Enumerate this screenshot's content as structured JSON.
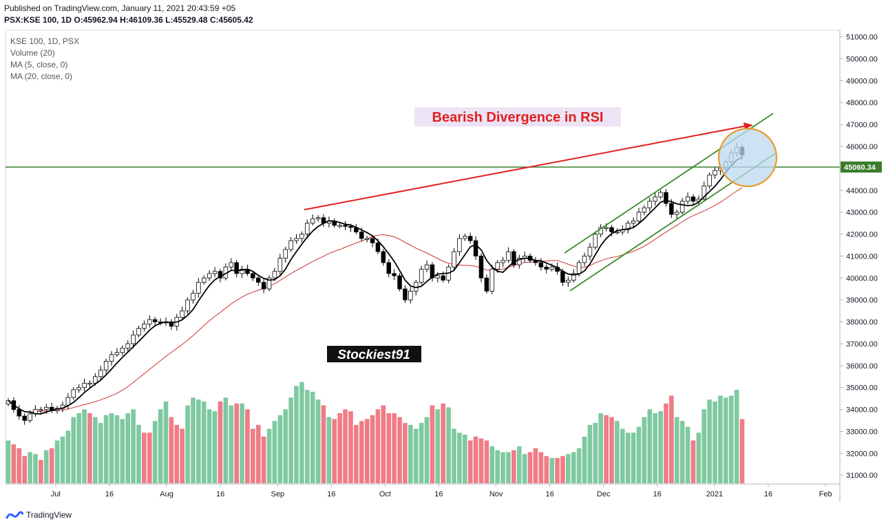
{
  "header": {
    "published": "Published on TradingView.com, January 11, 2021 20:43:59 +05",
    "ohlc": "PSX:KSE 100, 1D O:45962.94 H:46109.36 L:45529.48 C:45605.42"
  },
  "legend": {
    "symbol": "KSE 100, 1D, PSX",
    "volume": "Volume (20)",
    "ma5": "MA (5, close, 0)",
    "ma20": "MA (20, close, 0)"
  },
  "annotations": {
    "divergence_text": "Bearish Divergence in RSI",
    "watermark": "Stockiest91",
    "price_level_label": "45060.34"
  },
  "footer": {
    "brand": "TradingView"
  },
  "colors": {
    "bull": "#ffffff",
    "bear": "#000000",
    "vol_up": "#7fc9a0",
    "vol_down": "#ef7c86",
    "ma5": "#000000",
    "ma20": "#d32f2f",
    "channel": "#3a8a2a",
    "divergence": "#e31e1e",
    "level": "#3a7d2c",
    "circle": "#e79b2d",
    "circle_fill": "#bcd9f0"
  },
  "chart_data": {
    "type": "candlestick",
    "price_axis": {
      "range": [
        30600,
        51300
      ],
      "ticks": [
        31000,
        32000,
        33000,
        34000,
        35000,
        36000,
        37000,
        38000,
        39000,
        40000,
        41000,
        42000,
        43000,
        44000,
        45000,
        46000,
        47000,
        48000,
        49000,
        50000,
        51000
      ],
      "tick_labels": [
        "31000.00",
        "32000.00",
        "33000.00",
        "34000.00",
        "35000.00",
        "36000.00",
        "37000.00",
        "38000.00",
        "39000.00",
        "40000.00",
        "41000.00",
        "42000.00",
        "43000.00",
        "44000.00",
        "45000.00",
        "46000.00",
        "47000.00",
        "48000.00",
        "49000.00",
        "50000.00",
        "51000.00"
      ]
    },
    "time_axis": {
      "labels": [
        {
          "text": "Jul",
          "date": "2020-07-01"
        },
        {
          "text": "16",
          "date": "2020-07-16"
        },
        {
          "text": "Aug",
          "date": "2020-08-01"
        },
        {
          "text": "16",
          "date": "2020-08-16"
        },
        {
          "text": "Sep",
          "date": "2020-09-01"
        },
        {
          "text": "16",
          "date": "2020-09-16"
        },
        {
          "text": "Oct",
          "date": "2020-10-01"
        },
        {
          "text": "16",
          "date": "2020-10-16"
        },
        {
          "text": "Nov",
          "date": "2020-11-01"
        },
        {
          "text": "16",
          "date": "2020-11-16"
        },
        {
          "text": "Dec",
          "date": "2020-12-01"
        },
        {
          "text": "16",
          "date": "2020-12-16"
        },
        {
          "text": "2021",
          "date": "2021-01-01"
        },
        {
          "text": "16",
          "date": "2021-01-16"
        },
        {
          "text": "Feb",
          "date": "2021-02-01"
        }
      ],
      "first_date": "2020-06-17",
      "last_date": "2021-02-05"
    },
    "price_level": 45060.34,
    "closes": [
      34400,
      34000,
      33700,
      33500,
      33800,
      34000,
      34000,
      34100,
      33950,
      34050,
      34200,
      34550,
      34900,
      35000,
      35200,
      35200,
      35500,
      35800,
      36200,
      36500,
      36600,
      36800,
      37000,
      37400,
      37700,
      37900,
      38100,
      38000,
      37950,
      38000,
      37800,
      38200,
      38500,
      39000,
      39300,
      39800,
      40000,
      40200,
      40300,
      40000,
      40500,
      40700,
      40200,
      40400,
      40200,
      40000,
      39800,
      39500,
      40000,
      40300,
      40900,
      41300,
      41700,
      41800,
      42000,
      42500,
      42700,
      42750,
      42500,
      42600,
      42400,
      42400,
      42350,
      42300,
      42100,
      41800,
      41800,
      41600,
      41200,
      40700,
      40200,
      40100,
      39500,
      39000,
      39400,
      39800,
      40400,
      40600,
      40000,
      40100,
      39900,
      40500,
      41200,
      41800,
      41900,
      41700,
      41000,
      40000,
      39400,
      40400,
      40700,
      40800,
      41200,
      40600,
      40900,
      41000,
      40800,
      40700,
      40500,
      40400,
      40500,
      40300,
      39800,
      39900,
      40200,
      40700,
      41000,
      41400,
      42000,
      42300,
      42300,
      42100,
      42100,
      42200,
      42500,
      42600,
      43000,
      43200,
      43500,
      43700,
      43900,
      43400,
      42900,
      43000,
      43500,
      43700,
      43500,
      43600,
      44200,
      44700,
      44900,
      45000,
      45300,
      45700,
      45962,
      45605
    ],
    "volume_axis_max": 300,
    "volumes": [
      110,
      100,
      90,
      70,
      80,
      75,
      60,
      85,
      90,
      110,
      120,
      135,
      170,
      180,
      190,
      180,
      170,
      155,
      175,
      180,
      175,
      165,
      180,
      190,
      150,
      130,
      130,
      160,
      190,
      210,
      170,
      150,
      140,
      200,
      220,
      215,
      210,
      190,
      185,
      210,
      220,
      200,
      205,
      205,
      190,
      140,
      150,
      120,
      140,
      160,
      175,
      190,
      220,
      250,
      260,
      240,
      235,
      215,
      200,
      170,
      165,
      180,
      190,
      185,
      150,
      160,
      165,
      175,
      190,
      200,
      180,
      180,
      170,
      155,
      150,
      140,
      155,
      170,
      200,
      190,
      205,
      195,
      140,
      130,
      125,
      110,
      120,
      115,
      110,
      95,
      85,
      80,
      80,
      85,
      95,
      75,
      80,
      90,
      80,
      70,
      65,
      65,
      70,
      75,
      80,
      90,
      120,
      150,
      155,
      180,
      175,
      170,
      160,
      140,
      130,
      130,
      145,
      170,
      190,
      180,
      185,
      205,
      225,
      170,
      160,
      145,
      110,
      130,
      190,
      215,
      210,
      225,
      220,
      225,
      240,
      165
    ],
    "volume_up": [
      true,
      false,
      false,
      false,
      true,
      true,
      false,
      true,
      false,
      true,
      true,
      true,
      true,
      true,
      true,
      false,
      true,
      true,
      true,
      true,
      true,
      true,
      true,
      true,
      true,
      false,
      false,
      true,
      true,
      true,
      false,
      false,
      false,
      true,
      true,
      true,
      true,
      true,
      true,
      false,
      true,
      true,
      false,
      true,
      false,
      false,
      false,
      false,
      true,
      true,
      true,
      true,
      true,
      true,
      true,
      true,
      true,
      true,
      false,
      true,
      false,
      false,
      false,
      false,
      false,
      false,
      false,
      false,
      false,
      false,
      false,
      false,
      false,
      false,
      true,
      true,
      true,
      true,
      false,
      true,
      false,
      true,
      true,
      true,
      true,
      false,
      false,
      false,
      false,
      true,
      true,
      true,
      true,
      false,
      true,
      true,
      false,
      false,
      false,
      false,
      true,
      false,
      false,
      true,
      true,
      true,
      true,
      true,
      true,
      true,
      false,
      false,
      true,
      true,
      true,
      true,
      true,
      true,
      true,
      true,
      true,
      false,
      false,
      true,
      true,
      true,
      false,
      true,
      true,
      true,
      true,
      true,
      true,
      true,
      true,
      false
    ]
  }
}
